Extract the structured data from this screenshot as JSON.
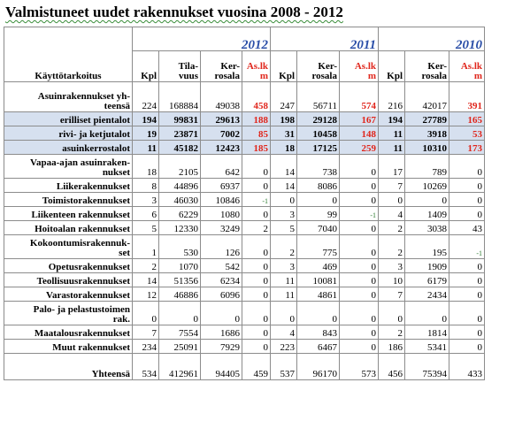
{
  "title": "Valmistuneet uudet rakennukset vuosina 2008 - 2012",
  "header": {
    "years": [
      "2012",
      "2011",
      "2010"
    ],
    "purpose_label": "Käyttötarkoitus",
    "cols": {
      "kpl": "Kpl",
      "tilavuus": "Tila-\nvuus",
      "kerrosala": "Ker-\nrosala",
      "asuntoja": "As.lk\nm",
      "kerrosala_short": "Ker-\nrosala"
    }
  },
  "rows": [
    {
      "label": "Asuinrakennukset yh-\nteensä",
      "v": [
        "224",
        "168884",
        "49038",
        "458",
        "247",
        "56711",
        "574",
        "216",
        "42017",
        "391"
      ]
    },
    {
      "label": "erilliset pientalot",
      "v": [
        "194",
        "99831",
        "29613",
        "188",
        "198",
        "29128",
        "167",
        "194",
        "27789",
        "165"
      ]
    },
    {
      "label": "rivi- ja ketjutalot",
      "v": [
        "19",
        "23871",
        "7002",
        "85",
        "31",
        "10458",
        "148",
        "11",
        "3918",
        "53"
      ]
    },
    {
      "label": "asuinkerrostalot",
      "v": [
        "11",
        "45182",
        "12423",
        "185",
        "18",
        "17125",
        "259",
        "11",
        "10310",
        "173"
      ]
    },
    {
      "label": "Vapaa-ajan asuinraken-\nnukset",
      "v": [
        "18",
        "2105",
        "642",
        "0",
        "14",
        "738",
        "0",
        "17",
        "789",
        "0"
      ]
    },
    {
      "label": "Liikerakennukset",
      "v": [
        "8",
        "44896",
        "6937",
        "0",
        "14",
        "8086",
        "0",
        "7",
        "10269",
        "0"
      ]
    },
    {
      "label": "Toimistorakennukset",
      "v": [
        "3",
        "46030",
        "10846",
        "-1",
        "0",
        "0",
        "0",
        "0",
        "0",
        "0"
      ]
    },
    {
      "label": "Liikenteen rakennukset",
      "v": [
        "6",
        "6229",
        "1080",
        "0",
        "3",
        "99",
        "-1",
        "4",
        "1409",
        "0"
      ]
    },
    {
      "label": "Hoitoalan rakennukset",
      "v": [
        "5",
        "12330",
        "3249",
        "2",
        "5",
        "7040",
        "0",
        "2",
        "3038",
        "43"
      ]
    },
    {
      "label": "Kokoontumisrakennuk-\nset",
      "v": [
        "1",
        "530",
        "126",
        "0",
        "2",
        "775",
        "0",
        "2",
        "195",
        "-1"
      ]
    },
    {
      "label": "Opetusrakennukset",
      "v": [
        "2",
        "1070",
        "542",
        "0",
        "3",
        "469",
        "0",
        "3",
        "1909",
        "0"
      ]
    },
    {
      "label": "Teollisuusrakennukset",
      "v": [
        "14",
        "51356",
        "6234",
        "0",
        "11",
        "10081",
        "0",
        "10",
        "6179",
        "0"
      ]
    },
    {
      "label": "Varastorakennukset",
      "v": [
        "12",
        "46886",
        "6096",
        "0",
        "11",
        "4861",
        "0",
        "7",
        "2434",
        "0"
      ]
    },
    {
      "label": "Palo- ja pelastustoimen\nrak.",
      "v": [
        "0",
        "0",
        "0",
        "0",
        "0",
        "0",
        "0",
        "0",
        "0",
        "0"
      ]
    },
    {
      "label": "Maatalousrakennukset",
      "v": [
        "7",
        "7554",
        "1686",
        "0",
        "4",
        "843",
        "0",
        "2",
        "1814",
        "0"
      ]
    },
    {
      "label": "Muut rakennukset",
      "v": [
        "234",
        "25091",
        "7929",
        "0",
        "223",
        "6467",
        "0",
        "186",
        "5341",
        "0"
      ]
    },
    {
      "label": "Yhteensä",
      "v": [
        "534",
        "412961",
        "94405",
        "459",
        "537",
        "96170",
        "573",
        "456",
        "75394",
        "433"
      ]
    }
  ]
}
